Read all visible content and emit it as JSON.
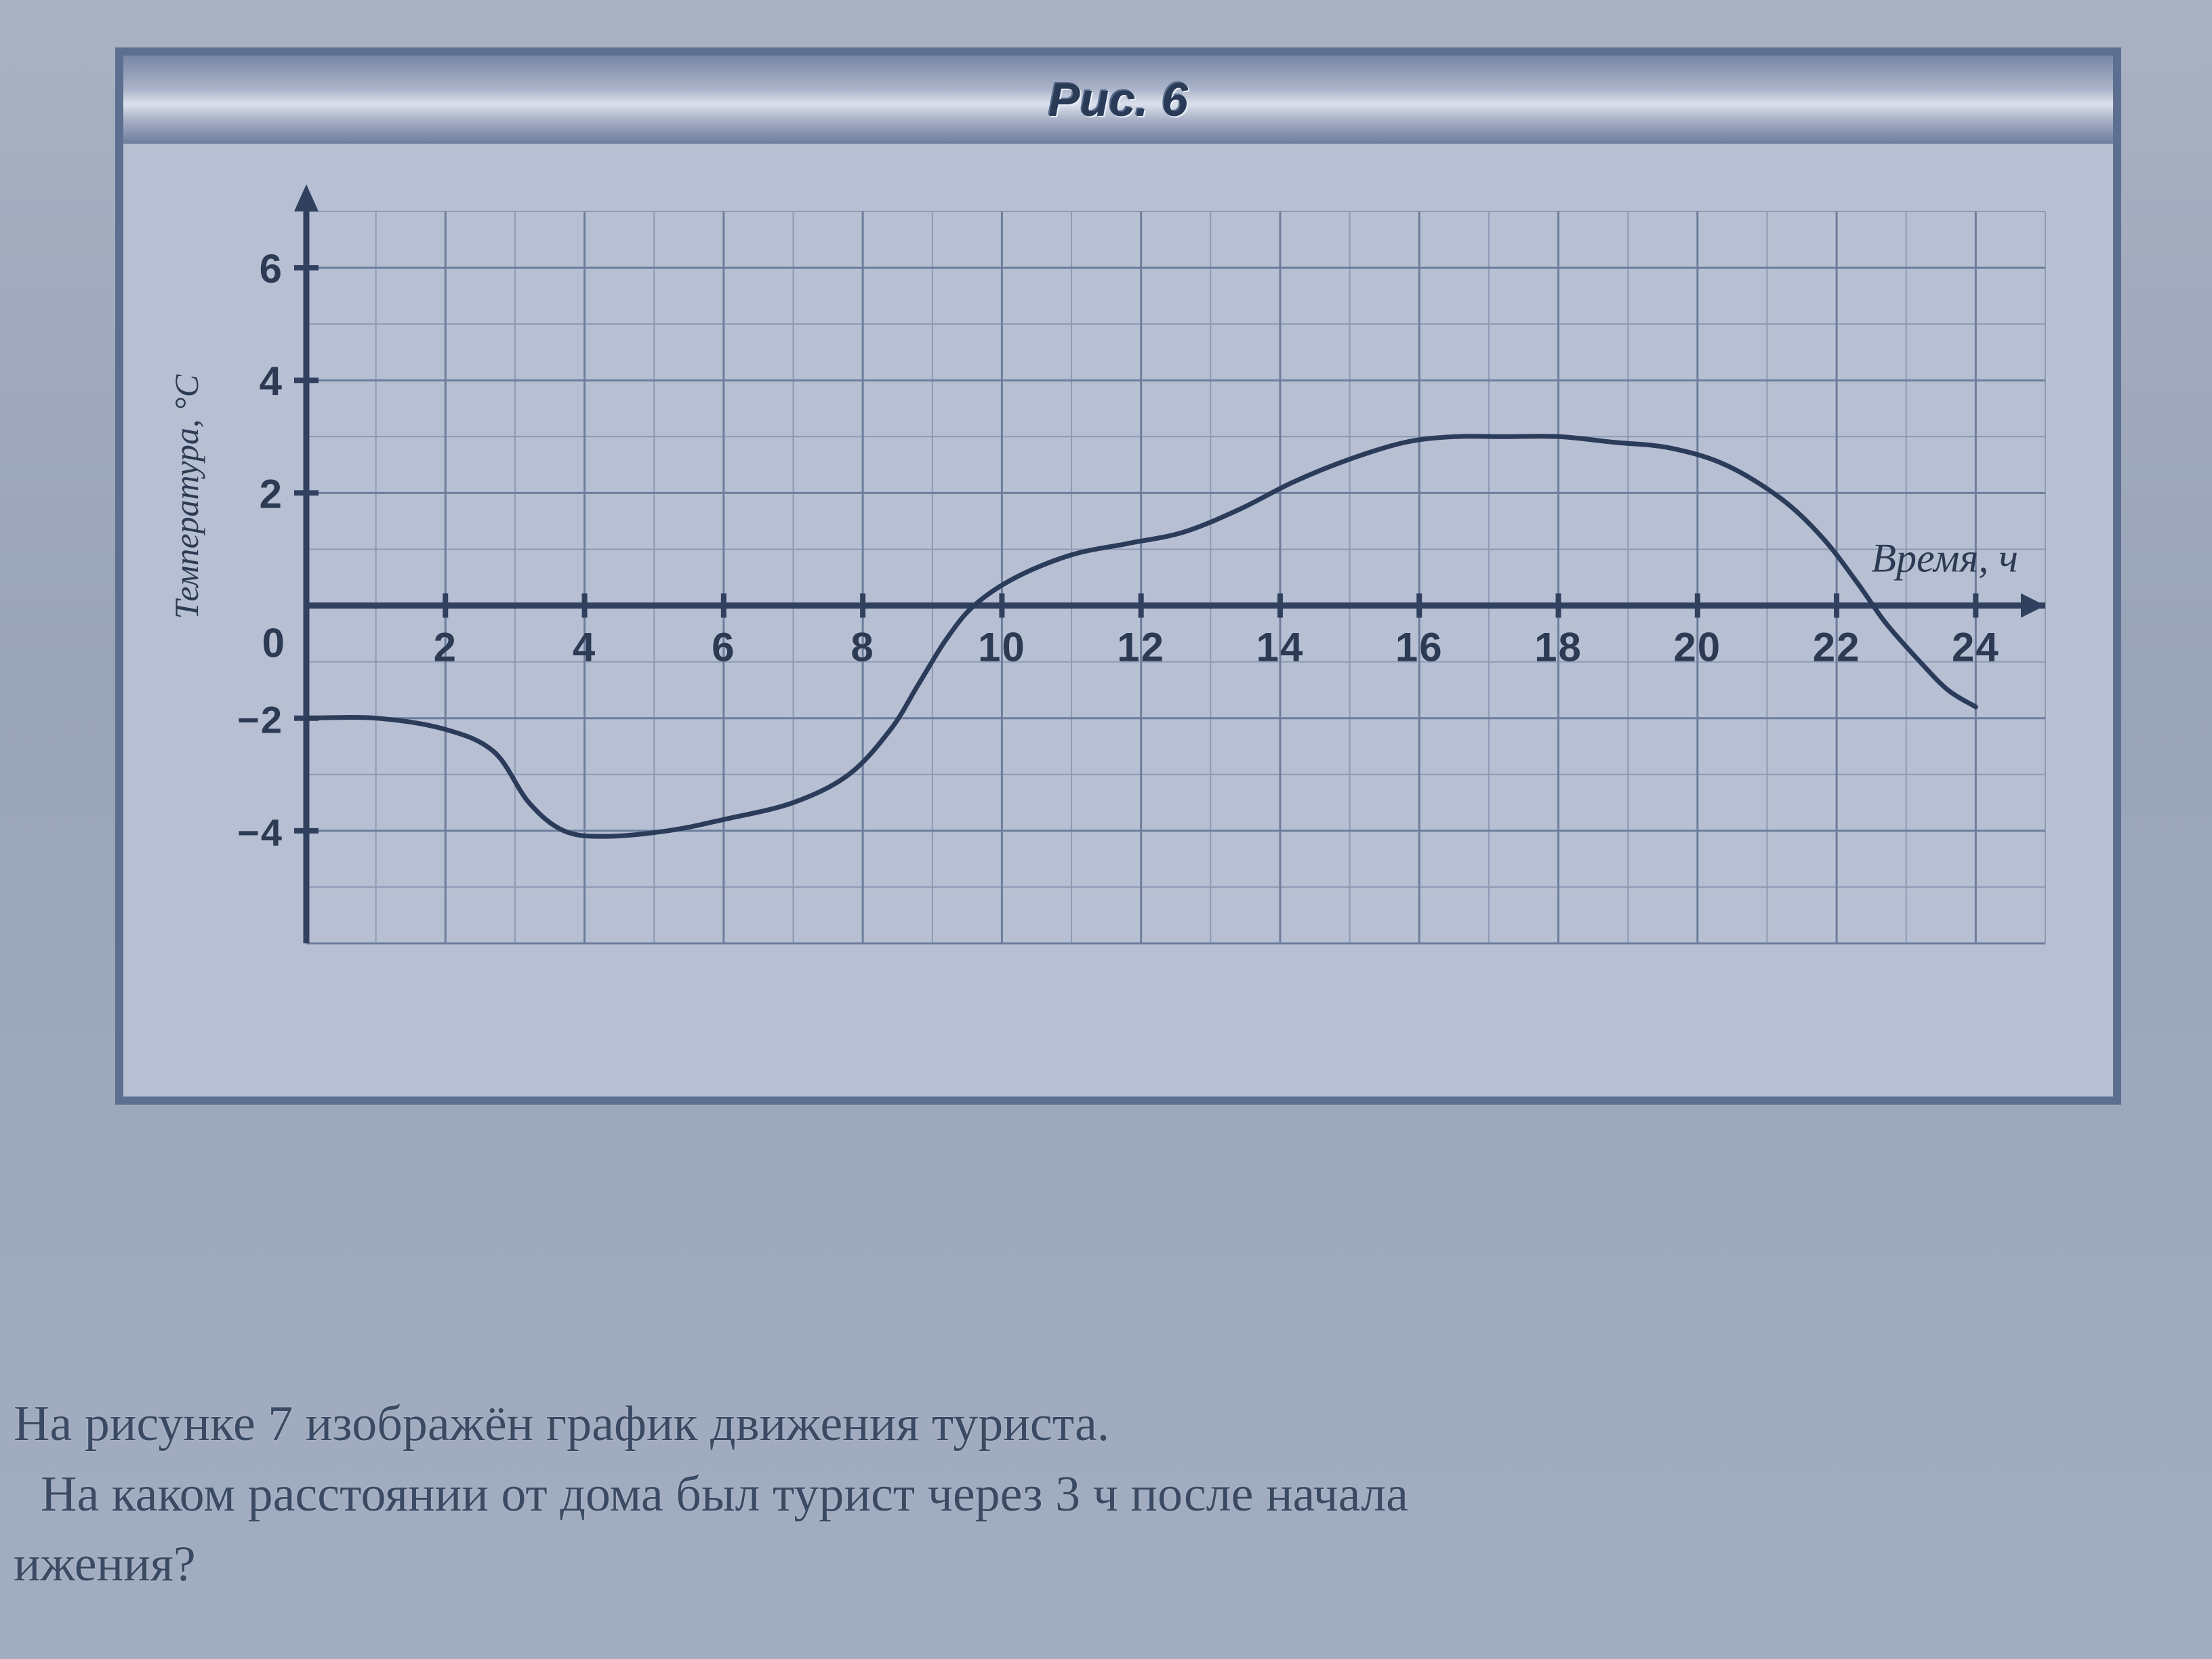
{
  "figure": {
    "title": "Рис. 6",
    "type": "line",
    "x_axis": {
      "label": "Время, ч",
      "min": 0,
      "max": 25,
      "ticks": [
        2,
        4,
        6,
        8,
        10,
        12,
        14,
        16,
        18,
        20,
        22,
        24
      ],
      "zero_label": "0"
    },
    "y_axis": {
      "label": "Температура, °С",
      "min": -6,
      "max": 7,
      "ticks_pos": [
        2,
        4,
        6
      ],
      "ticks_neg": [
        -2,
        -4
      ]
    },
    "grid": {
      "minor_step_x": 1,
      "minor_step_y": 1,
      "major_step_x": 2,
      "major_step_y": 2,
      "minor_color": "#8d9ab4",
      "major_color": "#6d7d9c",
      "axis_color": "#30405e",
      "background": "#b7bfd2"
    },
    "curve": {
      "color": "#2b3c5a",
      "width": 7,
      "points": [
        [
          0,
          -2.0
        ],
        [
          1,
          -2.0
        ],
        [
          2,
          -2.2
        ],
        [
          2.7,
          -2.6
        ],
        [
          3.2,
          -3.5
        ],
        [
          3.7,
          -4.0
        ],
        [
          4.3,
          -4.1
        ],
        [
          5.2,
          -4.0
        ],
        [
          6.0,
          -3.8
        ],
        [
          7.0,
          -3.5
        ],
        [
          7.8,
          -3.0
        ],
        [
          8.4,
          -2.2
        ],
        [
          8.8,
          -1.4
        ],
        [
          9.2,
          -0.6
        ],
        [
          9.6,
          0.0
        ],
        [
          10.2,
          0.5
        ],
        [
          11.0,
          0.9
        ],
        [
          11.8,
          1.1
        ],
        [
          12.6,
          1.3
        ],
        [
          13.4,
          1.7
        ],
        [
          14.2,
          2.2
        ],
        [
          15.0,
          2.6
        ],
        [
          15.8,
          2.9
        ],
        [
          16.5,
          3.0
        ],
        [
          17.2,
          3.0
        ],
        [
          18.0,
          3.0
        ],
        [
          18.8,
          2.9
        ],
        [
          19.6,
          2.8
        ],
        [
          20.4,
          2.5
        ],
        [
          21.2,
          1.9
        ],
        [
          21.8,
          1.2
        ],
        [
          22.3,
          0.4
        ],
        [
          22.7,
          -0.3
        ],
        [
          23.2,
          -1.0
        ],
        [
          23.6,
          -1.5
        ],
        [
          24.0,
          -1.8
        ]
      ]
    },
    "style": {
      "tick_font_size": 60,
      "tick_font_weight": 800,
      "label_font_size_y": 50,
      "label_font_size_x": 60,
      "tick_color": "#2c3a53"
    }
  },
  "question": {
    "line1": "На рисунке 7 изображён график движения туриста.",
    "line2": "На каком расстоянии от дома был турист через 3 ч после начала",
    "line3": "ижения?"
  }
}
